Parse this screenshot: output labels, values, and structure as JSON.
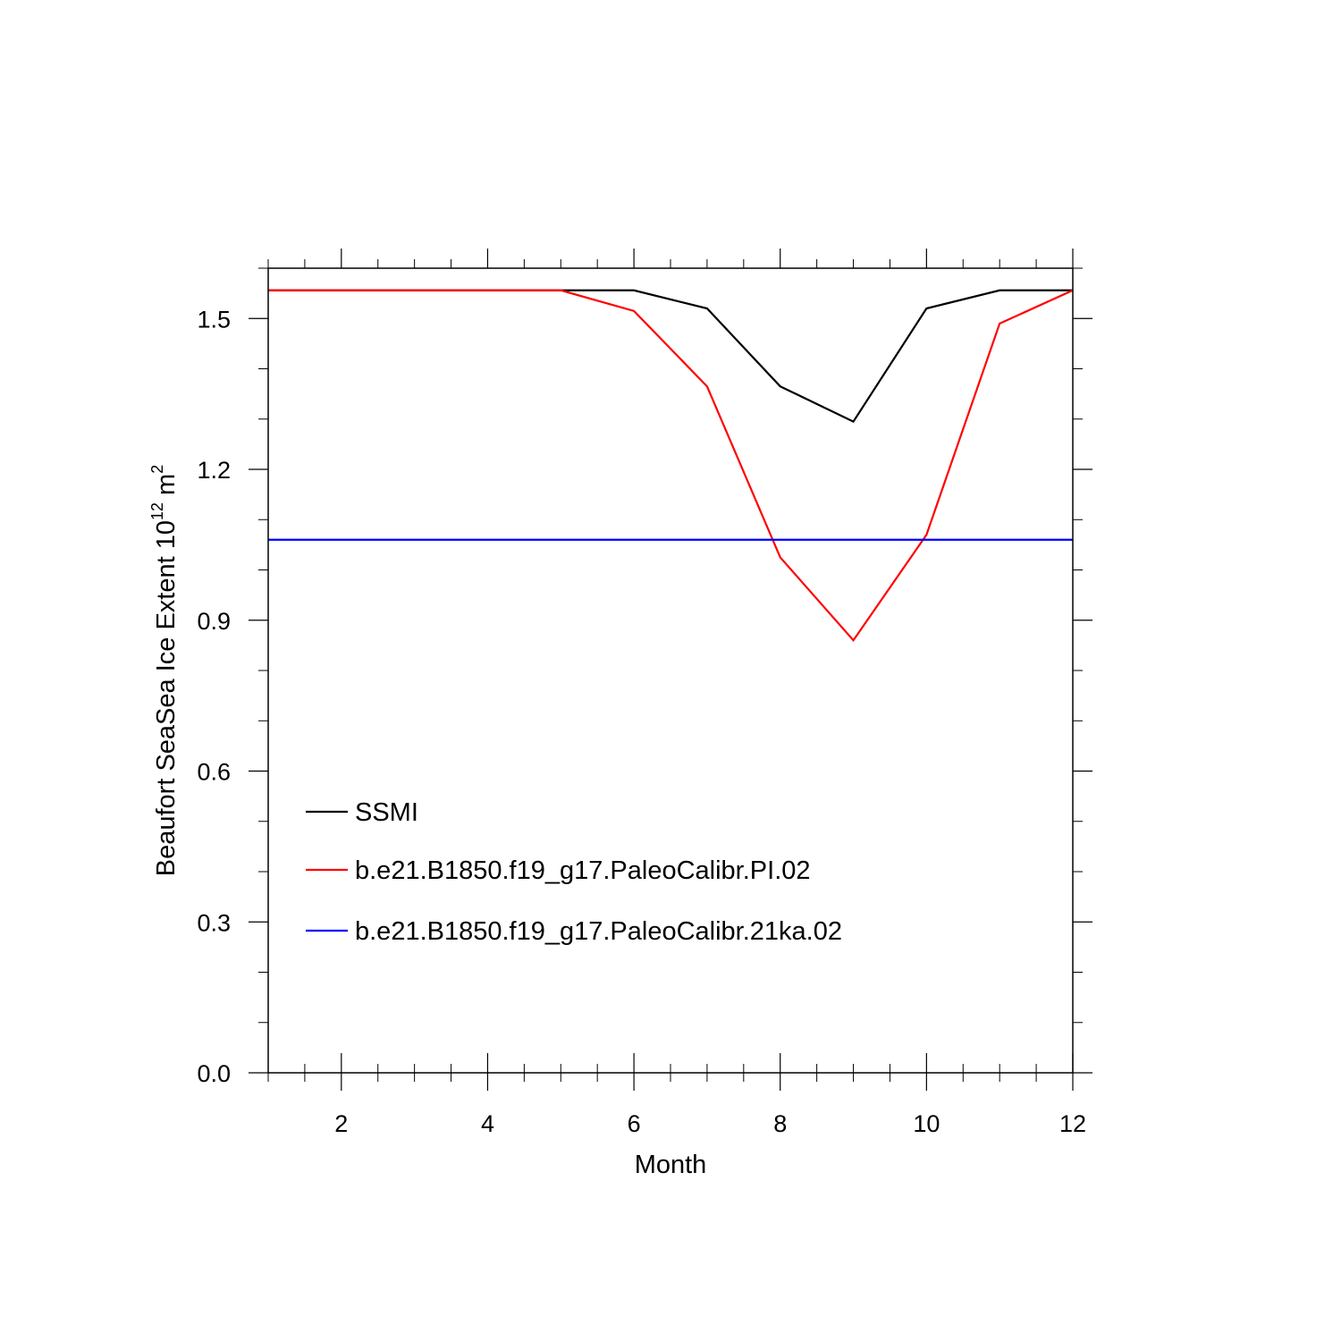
{
  "chart_data": {
    "type": "line",
    "xlabel": "Month",
    "ylabel": {
      "prefix": "Beaufort SeaSea Ice Extent 10",
      "exponent": "12",
      "unit": " m",
      "unit_exponent": "2"
    },
    "xlim": [
      1,
      12
    ],
    "ylim": [
      0,
      1.6
    ],
    "x_ticks": [
      2,
      4,
      6,
      8,
      10,
      12
    ],
    "x_tick_labels": [
      "2",
      "4",
      "6",
      "8",
      "10",
      "12"
    ],
    "y_ticks": [
      0,
      0.3,
      0.6,
      0.9,
      1.2,
      1.5
    ],
    "y_tick_labels": [
      "0.0",
      "0.3",
      "0.6",
      "0.9",
      "1.2",
      "1.5"
    ],
    "grid": false,
    "legend_position": "lower-left",
    "x": [
      1,
      2,
      3,
      4,
      5,
      6,
      7,
      8,
      9,
      10,
      11,
      12
    ],
    "series": [
      {
        "name": "SSMI",
        "color": "#000000",
        "values": [
          1.556,
          1.556,
          1.556,
          1.556,
          1.556,
          1.556,
          1.52,
          1.365,
          1.295,
          1.52,
          1.556,
          1.556
        ]
      },
      {
        "name": "b.e21.B1850.f19_g17.PaleoCalibr.PI.02",
        "color": "#ff0000",
        "values": [
          1.556,
          1.556,
          1.556,
          1.556,
          1.556,
          1.515,
          1.365,
          1.025,
          0.86,
          1.07,
          1.49,
          1.556
        ]
      },
      {
        "name": "b.e21.B1850.f19_g17.PaleoCalibr.21ka.02",
        "color": "#0000ff",
        "values": [
          1.06,
          1.06,
          1.06,
          1.06,
          1.06,
          1.06,
          1.06,
          1.06,
          1.06,
          1.06,
          1.06,
          1.06
        ]
      }
    ]
  }
}
